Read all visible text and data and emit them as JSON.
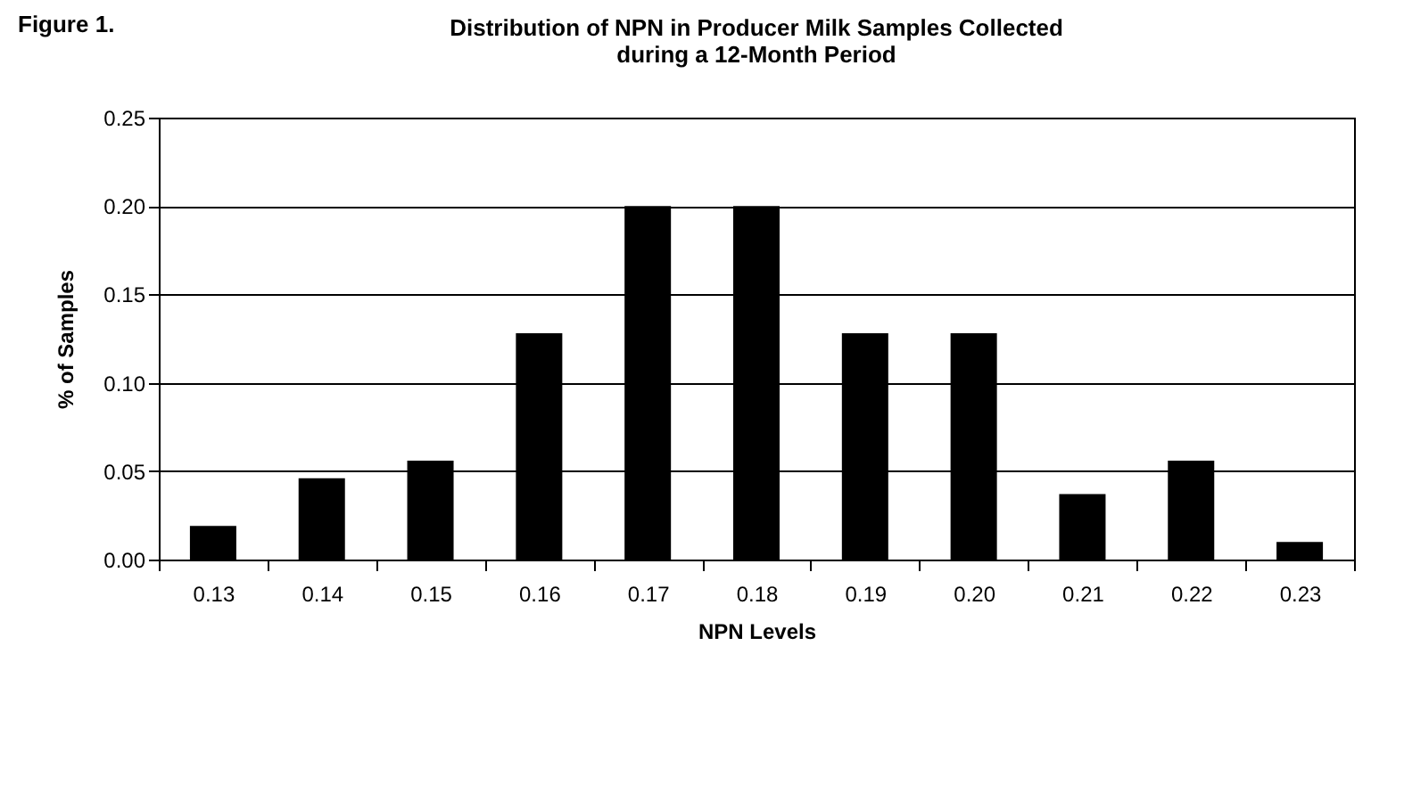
{
  "chart_data": {
    "type": "bar",
    "title": "Distribution of NPN in Producer Milk Samples Collected\nduring a 12-Month Period",
    "xlabel": "NPN Levels",
    "ylabel": "% of Samples",
    "annotations": [
      "Figure 1."
    ],
    "categories": [
      "0.13",
      "0.14",
      "0.15",
      "0.16",
      "0.17",
      "0.18",
      "0.19",
      "0.20",
      "0.21",
      "0.22",
      "0.23"
    ],
    "values": [
      0.019,
      0.046,
      0.056,
      0.128,
      0.2,
      0.2,
      0.128,
      0.128,
      0.037,
      0.056,
      0.01
    ],
    "color": "#000000",
    "ylim": [
      0,
      0.25
    ],
    "yticks": [
      {
        "value": 0,
        "label": "0.00"
      },
      {
        "value": 0.05,
        "label": "0.05"
      },
      {
        "value": 0.1,
        "label": "0.10"
      },
      {
        "value": 0.15,
        "label": "0.15"
      },
      {
        "value": 0.2,
        "label": "0.20"
      },
      {
        "value": 0.25,
        "label": "0.25"
      }
    ],
    "grid": "y"
  }
}
